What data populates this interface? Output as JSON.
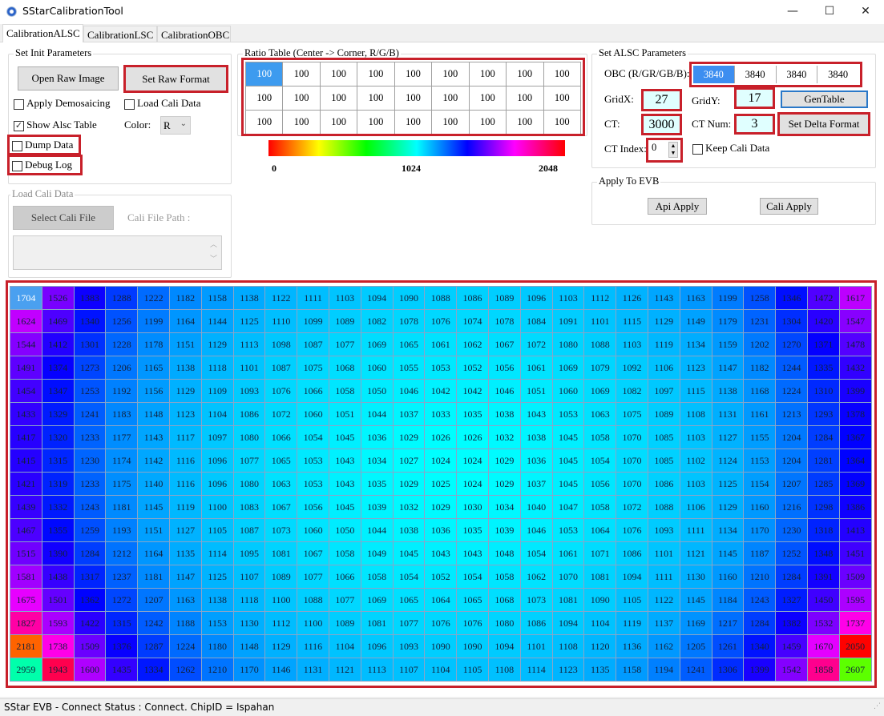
{
  "window": {
    "title": "SStarCalibrationTool",
    "minimize": "—",
    "maximize": "☐",
    "close": "✕"
  },
  "tabs": [
    {
      "label": "CalibrationALSC",
      "selected": true
    },
    {
      "label": "CalibrationLSC"
    },
    {
      "label": "CalibrationOBC"
    }
  ],
  "init": {
    "title": "Set Init Parameters",
    "open_raw": "Open Raw Image",
    "set_raw": "Set Raw Format",
    "apply_demosaicing": {
      "label": "Apply Demosaicing",
      "checked": false
    },
    "load_cali_data": {
      "label": "Load Cali Data",
      "checked": false
    },
    "show_alsc_table": {
      "label": "Show Alsc Table",
      "checked": true
    },
    "color_label": "Color:",
    "color_value": "R",
    "dump_data": {
      "label": "Dump Data",
      "checked": false
    },
    "debug_log": {
      "label": "Debug Log",
      "checked": false
    }
  },
  "load_cali": {
    "title": "Load Cali Data",
    "select_file": "Select Cali File",
    "path_label": "Cali File Path :",
    "path_value": ""
  },
  "ratio": {
    "title": "Ratio Table (Center -> Corner, R/G/B)",
    "rows": [
      [
        "100",
        "100",
        "100",
        "100",
        "100",
        "100",
        "100",
        "100",
        "100"
      ],
      [
        "100",
        "100",
        "100",
        "100",
        "100",
        "100",
        "100",
        "100",
        "100"
      ],
      [
        "100",
        "100",
        "100",
        "100",
        "100",
        "100",
        "100",
        "100",
        "100"
      ]
    ]
  },
  "colorbar": {
    "min": "0",
    "mid": "1024",
    "max": "2048"
  },
  "alsc": {
    "title": "Set ALSC Parameters",
    "obc_label": "OBC (R/GR/GB/B):",
    "obc": [
      "3840",
      "3840",
      "3840",
      "3840"
    ],
    "gridx_label": "GridX:",
    "gridx": "27",
    "gridy_label": "GridY:",
    "gridy": "17",
    "gentable": "GenTable",
    "ct_label": "CT:",
    "ct": "3000",
    "ctnum_label": "CT Num:",
    "ctnum": "3",
    "set_delta": "Set Delta Format",
    "ctindex_label": "CT Index:",
    "ctindex": "0",
    "keep_cali": {
      "label": "Keep Cali Data",
      "checked": false
    }
  },
  "evb": {
    "title": "Apply To EVB",
    "api_apply": "Api Apply",
    "cali_apply": "Cali Apply"
  },
  "alsc_table": [
    [
      1704,
      1526,
      1383,
      1288,
      1222,
      1182,
      1158,
      1138,
      1122,
      1111,
      1103,
      1094,
      1090,
      1088,
      1086,
      1089,
      1096,
      1103,
      1112,
      1126,
      1143,
      1163,
      1199,
      1258,
      1346,
      1472,
      1617
    ],
    [
      1624,
      1469,
      1340,
      1256,
      1199,
      1164,
      1144,
      1125,
      1110,
      1099,
      1089,
      1082,
      1078,
      1076,
      1074,
      1078,
      1084,
      1091,
      1101,
      1115,
      1129,
      1149,
      1179,
      1231,
      1304,
      1420,
      1547
    ],
    [
      1544,
      1412,
      1301,
      1228,
      1178,
      1151,
      1129,
      1113,
      1098,
      1087,
      1077,
      1069,
      1065,
      1061,
      1062,
      1067,
      1072,
      1080,
      1088,
      1103,
      1119,
      1134,
      1159,
      1202,
      1270,
      1371,
      1478
    ],
    [
      1491,
      1374,
      1273,
      1206,
      1165,
      1138,
      1118,
      1101,
      1087,
      1075,
      1068,
      1060,
      1055,
      1053,
      1052,
      1056,
      1061,
      1069,
      1079,
      1092,
      1106,
      1123,
      1147,
      1182,
      1244,
      1335,
      1432
    ],
    [
      1454,
      1347,
      1253,
      1192,
      1156,
      1129,
      1109,
      1093,
      1076,
      1066,
      1058,
      1050,
      1046,
      1042,
      1042,
      1046,
      1051,
      1060,
      1069,
      1082,
      1097,
      1115,
      1138,
      1168,
      1224,
      1310,
      1399
    ],
    [
      1433,
      1329,
      1241,
      1183,
      1148,
      1123,
      1104,
      1086,
      1072,
      1060,
      1051,
      1044,
      1037,
      1033,
      1035,
      1038,
      1043,
      1053,
      1063,
      1075,
      1089,
      1108,
      1131,
      1161,
      1213,
      1293,
      1378
    ],
    [
      1417,
      1320,
      1233,
      1177,
      1143,
      1117,
      1097,
      1080,
      1066,
      1054,
      1045,
      1036,
      1029,
      1026,
      1026,
      1032,
      1038,
      1045,
      1058,
      1070,
      1085,
      1103,
      1127,
      1155,
      1204,
      1284,
      1367
    ],
    [
      1415,
      1315,
      1230,
      1174,
      1142,
      1116,
      1096,
      1077,
      1065,
      1053,
      1043,
      1034,
      1027,
      1024,
      1024,
      1029,
      1036,
      1045,
      1054,
      1070,
      1085,
      1102,
      1124,
      1153,
      1204,
      1281,
      1364
    ],
    [
      1421,
      1319,
      1233,
      1175,
      1140,
      1116,
      1096,
      1080,
      1063,
      1053,
      1043,
      1035,
      1029,
      1025,
      1024,
      1029,
      1037,
      1045,
      1056,
      1070,
      1086,
      1103,
      1125,
      1154,
      1207,
      1285,
      1369
    ],
    [
      1439,
      1332,
      1243,
      1181,
      1145,
      1119,
      1100,
      1083,
      1067,
      1056,
      1045,
      1039,
      1032,
      1029,
      1030,
      1034,
      1040,
      1047,
      1058,
      1072,
      1088,
      1106,
      1129,
      1160,
      1216,
      1298,
      1386
    ],
    [
      1467,
      1355,
      1259,
      1193,
      1151,
      1127,
      1105,
      1087,
      1073,
      1060,
      1050,
      1044,
      1038,
      1036,
      1035,
      1039,
      1046,
      1053,
      1064,
      1076,
      1093,
      1111,
      1134,
      1170,
      1230,
      1318,
      1413
    ],
    [
      1515,
      1390,
      1284,
      1212,
      1164,
      1135,
      1114,
      1095,
      1081,
      1067,
      1058,
      1049,
      1045,
      1043,
      1043,
      1048,
      1054,
      1061,
      1071,
      1086,
      1101,
      1121,
      1145,
      1187,
      1252,
      1348,
      1451
    ],
    [
      1581,
      1438,
      1317,
      1237,
      1181,
      1147,
      1125,
      1107,
      1089,
      1077,
      1066,
      1058,
      1054,
      1052,
      1054,
      1058,
      1062,
      1070,
      1081,
      1094,
      1111,
      1130,
      1160,
      1210,
      1284,
      1391,
      1509
    ],
    [
      1675,
      1501,
      1362,
      1272,
      1207,
      1163,
      1138,
      1118,
      1100,
      1088,
      1077,
      1069,
      1065,
      1064,
      1065,
      1068,
      1073,
      1081,
      1090,
      1105,
      1122,
      1145,
      1184,
      1243,
      1327,
      1450,
      1595
    ],
    [
      1827,
      1593,
      1422,
      1315,
      1242,
      1188,
      1153,
      1130,
      1112,
      1100,
      1089,
      1081,
      1077,
      1076,
      1076,
      1080,
      1086,
      1094,
      1104,
      1119,
      1137,
      1169,
      1217,
      1284,
      1382,
      1532,
      1737
    ],
    [
      2181,
      1738,
      1509,
      1376,
      1287,
      1224,
      1180,
      1148,
      1129,
      1116,
      1104,
      1096,
      1093,
      1090,
      1090,
      1094,
      1101,
      1108,
      1120,
      1136,
      1162,
      1205,
      1261,
      1340,
      1459,
      1670,
      2050
    ],
    [
      2959,
      1943,
      1600,
      1435,
      1334,
      1262,
      1210,
      1170,
      1146,
      1131,
      1121,
      1113,
      1107,
      1104,
      1105,
      1108,
      1114,
      1123,
      1135,
      1158,
      1194,
      1241,
      1306,
      1399,
      1542,
      1858,
      2607
    ]
  ],
  "status": "SStar EVB - Connect Status : Connect. ChipID = Ispahan",
  "colors": {
    "highlight": "#c8202a",
    "selection": "#3d9bef",
    "input_bg": "#e0ffff"
  }
}
